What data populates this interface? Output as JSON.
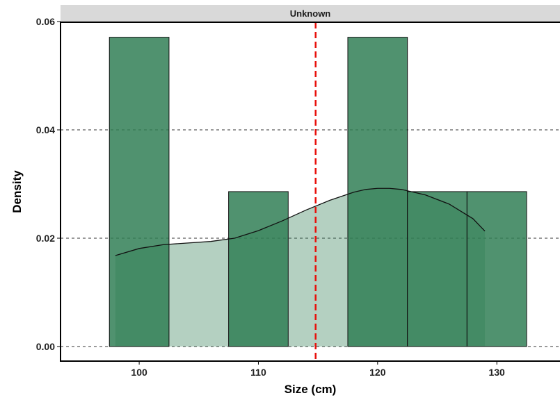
{
  "chart_data": {
    "type": "histogram",
    "facet_label": "Unknown",
    "xlabel": "Size (cm)",
    "ylabel": "Density",
    "xlim": [
      93.4,
      135.3
    ],
    "ylim": [
      0,
      0.06
    ],
    "x_ticks": [
      100,
      110,
      120,
      130
    ],
    "y_ticks": [
      0.0,
      0.02,
      0.04,
      0.06
    ],
    "y_tick_labels": [
      "0.00",
      "0.02",
      "0.04",
      "0.06"
    ],
    "grid": "horizontal-dashed",
    "bins": [
      {
        "x0": 97.5,
        "x1": 102.5,
        "density": 0.0571
      },
      {
        "x0": 107.5,
        "x1": 112.5,
        "density": 0.0286
      },
      {
        "x0": 117.5,
        "x1": 122.5,
        "density": 0.0571
      },
      {
        "x0": 122.5,
        "x1": 127.5,
        "density": 0.0286
      },
      {
        "x0": 127.5,
        "x1": 132.5,
        "density": 0.0286
      }
    ],
    "density_curve": [
      [
        98.0,
        0.0168
      ],
      [
        100.0,
        0.0181
      ],
      [
        102.0,
        0.0188
      ],
      [
        104.0,
        0.0191
      ],
      [
        106.0,
        0.0194
      ],
      [
        108.0,
        0.02
      ],
      [
        110.0,
        0.0214
      ],
      [
        112.0,
        0.0232
      ],
      [
        114.0,
        0.0252
      ],
      [
        116.0,
        0.027
      ],
      [
        118.0,
        0.0285
      ],
      [
        119.0,
        0.029
      ],
      [
        120.0,
        0.0292
      ],
      [
        121.0,
        0.0292
      ],
      [
        122.0,
        0.029
      ],
      [
        124.0,
        0.028
      ],
      [
        126.0,
        0.0263
      ],
      [
        128.0,
        0.0236
      ],
      [
        129.0,
        0.0213
      ]
    ],
    "mean_line_x": 114.8,
    "colors": {
      "bar_fill": "#2e7d54",
      "bar_stroke": "#111111",
      "density_fill": "#2e7d54",
      "mean_line": "#e8100b",
      "strip_bg": "#d9d9d9",
      "grid": "#333333"
    }
  }
}
